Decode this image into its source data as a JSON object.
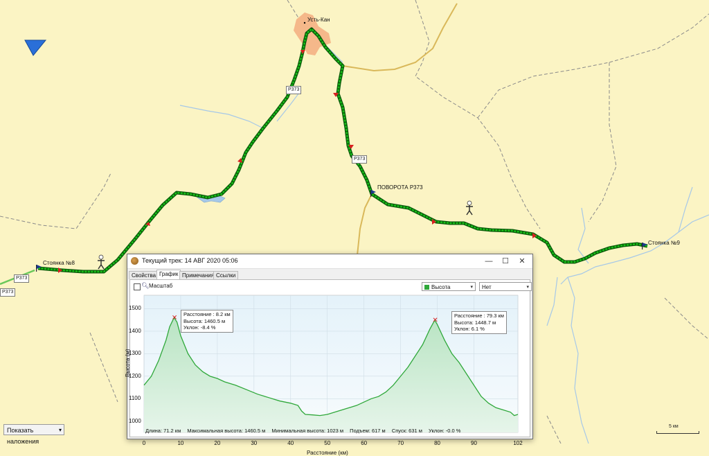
{
  "map": {
    "town_label": "Усть-Кан",
    "road_shields": [
      "Р373",
      "Р373",
      "Р373",
      "Р373"
    ],
    "waypoints": [
      {
        "label": "Стоянка №8"
      },
      {
        "label": "ПОВОРОТА Р373"
      },
      {
        "label": "Стоянка №9"
      }
    ],
    "overlay_select": "Показать наложения",
    "scale_label": "5 км",
    "colors": {
      "track": "#18c018",
      "track_outline": "#0a5a0a",
      "map_bg": "#fbf4c4",
      "water": "#a6c8e8",
      "road": "#d9b85a"
    }
  },
  "dialog": {
    "title": "Текущий трек: 14 АВГ 2020 05:06",
    "window_buttons": [
      "—",
      "☐",
      "✕"
    ],
    "tabs": [
      {
        "label": "Свойства",
        "active": false
      },
      {
        "label": "График",
        "active": true
      },
      {
        "label": "Примечания",
        "active": false
      },
      {
        "label": "Ссылки",
        "active": false
      }
    ],
    "scale_checkbox_label": "Масштаб",
    "series_dropdown": "Высота",
    "second_dropdown": "Нет",
    "callouts": [
      {
        "distance": "Расстояние : 8.2 км",
        "elevation": "Высота: 1460.5 м",
        "slope": "Уклон: -8.4 %"
      },
      {
        "distance": "Расстояние : 79.3 км",
        "elevation": "Высота: 1448.7 м",
        "slope": "Уклон: 6.1 %"
      }
    ],
    "stats": {
      "length": "Длина: 71.2 км",
      "max": "Максимальная высота: 1460.5 м",
      "min": "Минимальная высота: 1023 м",
      "ascent": "Подъем: 617 м",
      "descent": "Спуск: 631 м",
      "slope": "Уклон: -0.0 %"
    }
  },
  "chart_data": {
    "type": "area",
    "title": "",
    "xlabel": "Расстояние (км)",
    "ylabel": "Высота (м)",
    "xlim": [
      0,
      102
    ],
    "ylim": [
      950,
      1560
    ],
    "xticks": [
      0,
      10,
      20,
      30,
      40,
      50,
      60,
      70,
      80,
      90,
      102
    ],
    "yticks": [
      1000,
      1100,
      1200,
      1300,
      1400,
      1500
    ],
    "grid": true,
    "series": [
      {
        "name": "Высота",
        "x": [
          0,
          2,
          4,
          6,
          7,
          8.2,
          9,
          10,
          12,
          14,
          16,
          18,
          20,
          22,
          25,
          28,
          31,
          34,
          37,
          40,
          41,
          42,
          43,
          44,
          46,
          48,
          50,
          52,
          54,
          56,
          58,
          60,
          62,
          64,
          66,
          68,
          70,
          72,
          74,
          76,
          78,
          79.3,
          80,
          82,
          84,
          86,
          88,
          90,
          92,
          94,
          96,
          98,
          100,
          101,
          102
        ],
        "y": [
          1160,
          1200,
          1270,
          1360,
          1420,
          1460.5,
          1440,
          1380,
          1300,
          1250,
          1220,
          1200,
          1190,
          1175,
          1160,
          1140,
          1120,
          1105,
          1090,
          1080,
          1075,
          1070,
          1045,
          1030,
          1028,
          1025,
          1030,
          1040,
          1050,
          1060,
          1070,
          1085,
          1100,
          1110,
          1130,
          1160,
          1200,
          1240,
          1290,
          1340,
          1410,
          1448.7,
          1430,
          1360,
          1300,
          1260,
          1210,
          1160,
          1110,
          1080,
          1060,
          1050,
          1040,
          1025,
          1030
        ]
      }
    ]
  }
}
